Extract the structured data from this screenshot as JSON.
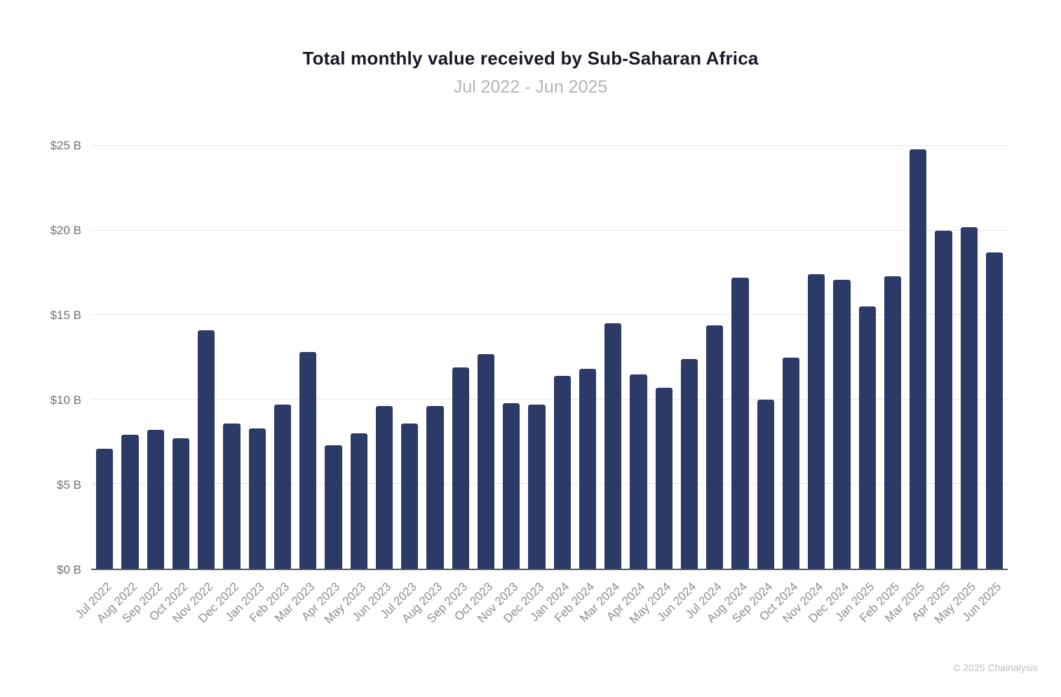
{
  "header": {
    "title": "Total monthly value received by Sub-Saharan Africa",
    "subtitle": "Jul 2022 - Jun 2025"
  },
  "footer": {
    "copyright": "© 2025 Chainalysis"
  },
  "chart_data": {
    "type": "bar",
    "title": "Total monthly value received by Sub-Saharan Africa",
    "subtitle": "Jul 2022 - Jun 2025",
    "categories": [
      "Jul 2022",
      "Aug 2022",
      "Sep 2022",
      "Oct 2022",
      "Nov 2022",
      "Dec 2022",
      "Jan 2023",
      "Feb 2023",
      "Mar 2023",
      "Apr 2023",
      "May 2023",
      "Jun 2023",
      "Jul 2023",
      "Aug 2023",
      "Sep 2023",
      "Oct 2023",
      "Nov 2023",
      "Dec 2023",
      "Jan 2024",
      "Feb 2024",
      "Mar 2024",
      "Apr 2024",
      "May 2024",
      "Jun 2024",
      "Jul 2024",
      "Aug 2024",
      "Sep 2024",
      "Oct 2024",
      "Nov 2024",
      "Dec 2024",
      "Jan 2025",
      "Feb 2025",
      "Mar 2025",
      "Apr 2025",
      "May 2025",
      "Jun 2025"
    ],
    "values": [
      7.1,
      7.9,
      8.2,
      7.7,
      14.1,
      8.6,
      8.3,
      9.7,
      12.8,
      7.3,
      8.0,
      9.6,
      8.6,
      9.6,
      11.9,
      12.7,
      9.8,
      9.7,
      11.4,
      11.8,
      14.5,
      11.5,
      10.7,
      12.4,
      14.4,
      17.2,
      10.0,
      12.5,
      17.4,
      17.1,
      15.5,
      17.3,
      24.8,
      20.0,
      20.2,
      18.7
    ],
    "value_unit": "USD billions",
    "xlabel": "",
    "ylabel": "",
    "ylim": [
      0,
      25
    ],
    "ytick_values": [
      0,
      5,
      10,
      15,
      20,
      25
    ],
    "ytick_labels": [
      "$0 B",
      "$5 B",
      "$10 B",
      "$15 B",
      "$20 B",
      "$25 B"
    ],
    "xtick_rotation": -45,
    "grid": true,
    "legend": "none",
    "bar_color": "#2b3a67"
  }
}
